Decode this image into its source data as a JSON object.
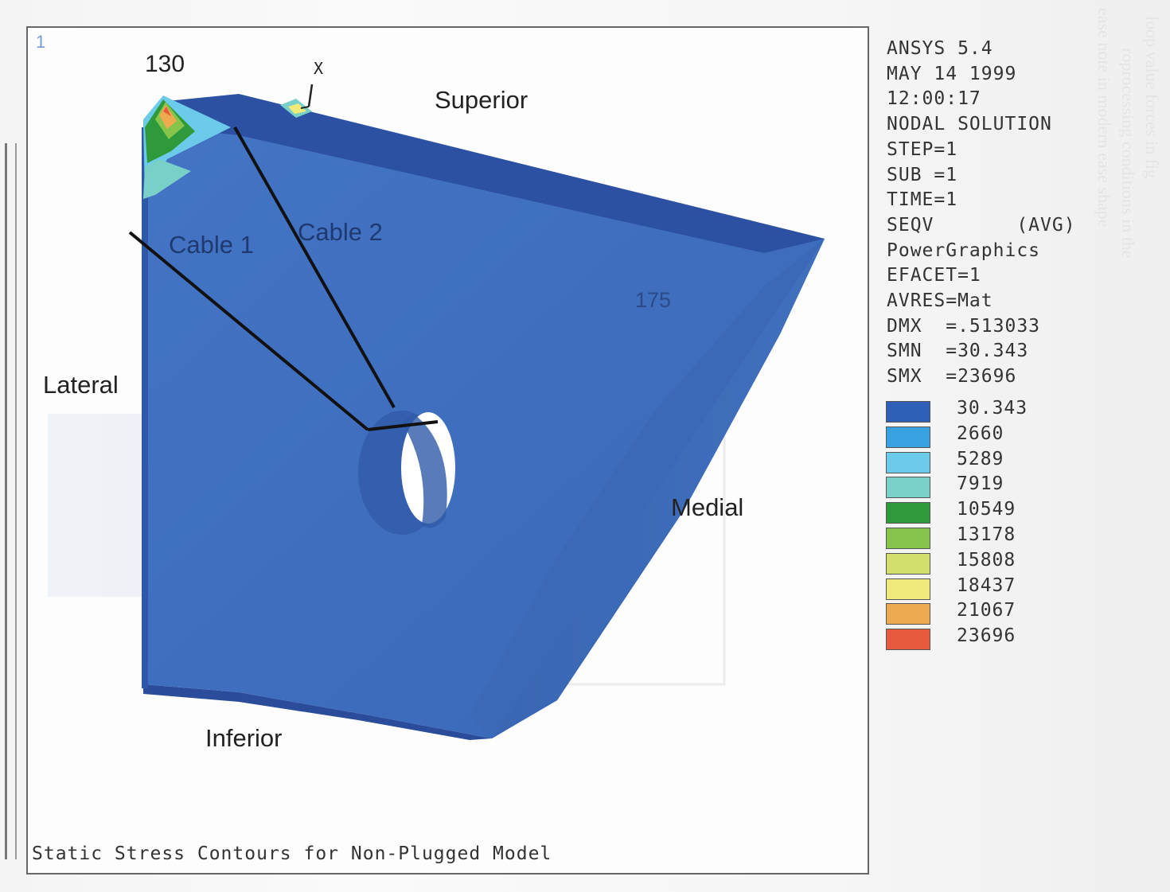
{
  "header": {
    "software": "ANSYS 5.4",
    "date": "MAY 14 1999",
    "time": "12:00:17",
    "analysis": "NODAL SOLUTION",
    "step": "STEP=1",
    "sub": "SUB =1",
    "time_param": "TIME=1",
    "result": "SEQV       (AVG)",
    "graphics": "PowerGraphics",
    "efacet": "EFACET=1",
    "avres": "AVRES=Mat",
    "dmx": "DMX  =.513033",
    "smn": "SMN  =30.343",
    "smx": "SMX  =23696"
  },
  "legend": [
    {
      "value": "30.343",
      "color": "#2f60b8"
    },
    {
      "value": "2660",
      "color": "#38a2e0"
    },
    {
      "value": "5289",
      "color": "#6ccbe8"
    },
    {
      "value": "7919",
      "color": "#79d0c8"
    },
    {
      "value": "10549",
      "color": "#2e9a3c"
    },
    {
      "value": "13178",
      "color": "#86c44c"
    },
    {
      "value": "15808",
      "color": "#d2df6c"
    },
    {
      "value": "18437",
      "color": "#f0ea7a"
    },
    {
      "value": "21067",
      "color": "#eeaa4e"
    },
    {
      "value": "23696",
      "color": "#e85a3c"
    }
  ],
  "labels": {
    "node_130": "130",
    "node_175": "175",
    "axis_x": "X",
    "superior": "Superior",
    "lateral": "Lateral",
    "medial": "Medial",
    "inferior": "Inferior",
    "cable1": "Cable 1",
    "cable2": "Cable 2",
    "corner": "1"
  },
  "caption": "Static Stress Contours for Non-Plugged Model",
  "colors": {
    "model_body": "#3f6fc0",
    "model_top": "#2a4ea0",
    "model_side": "#3a67b6",
    "cable": "#111111"
  }
}
